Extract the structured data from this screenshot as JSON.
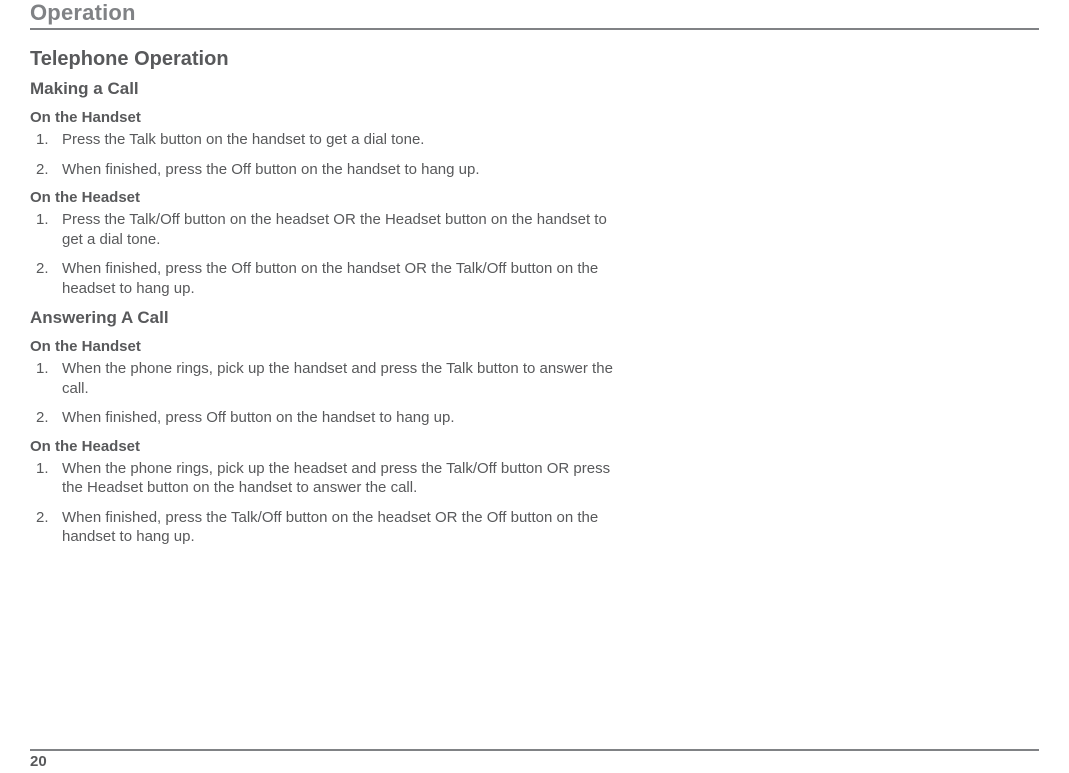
{
  "header": {
    "title": "Operation"
  },
  "pageNumber": "20",
  "colors": {
    "headerText": "#808285",
    "bodyText": "#58595b",
    "rule": "#808285",
    "background": "#ffffff"
  },
  "typography": {
    "headerSizePt": 17,
    "sectionTitleSizePt": 15,
    "subsectionTitleSizePt": 13,
    "subsubsectionTitleSizePt": 11,
    "bodySizePt": 11
  },
  "sectionTitle": "Telephone Operation",
  "makingACall": {
    "title": "Making a Call",
    "handset": {
      "title": "On the Handset",
      "steps": [
        "Press the Talk button on the handset to get a dial tone.",
        "When finished, press the Off button on the handset to hang up."
      ]
    },
    "headset": {
      "title": "On the Headset",
      "steps": [
        "Press the Talk/Off button on the headset OR the Headset button on the handset to get a dial tone.",
        "When finished, press the Off button on the handset OR the Talk/Off button on the headset to hang up."
      ]
    }
  },
  "answeringACall": {
    "title": "Answering A Call",
    "handset": {
      "title": "On the Handset",
      "steps": [
        "When the phone rings, pick up the handset and press the Talk button to answer the call.",
        "When finished, press Off button on the handset to hang up."
      ]
    },
    "headset": {
      "title": "On the Headset",
      "steps": [
        "When the phone rings, pick up the headset and press the Talk/Off button OR press the Headset button on the handset to answer the call.",
        "When finished, press the Talk/Off button on the headset OR the Off button on the handset to hang up."
      ]
    }
  }
}
